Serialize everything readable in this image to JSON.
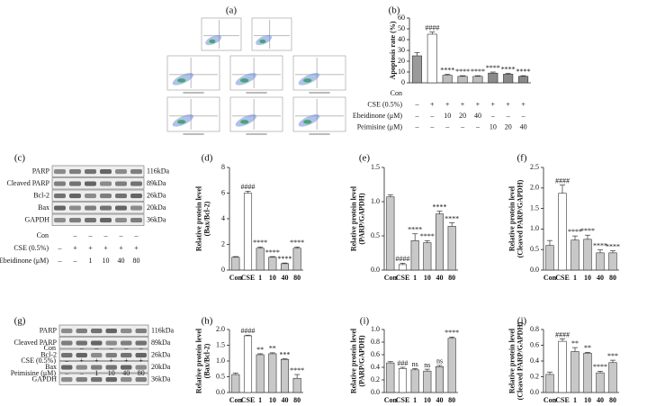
{
  "panel_a": "(a)",
  "chart_data": [
    {
      "type": "bar",
      "panel": "(b)",
      "ylabel": [
        "Apoptosis rate (%)"
      ],
      "values": [
        25,
        45,
        7,
        6,
        6,
        9,
        8,
        6
      ],
      "errors": [
        3,
        2,
        0.8,
        0.6,
        0.6,
        1,
        0.8,
        0.6
      ],
      "annotations": [
        null,
        "####",
        "****",
        "****",
        "****",
        "****",
        "****",
        "****"
      ],
      "colors": [
        "#9a9a9a",
        "#ffffff",
        "#bdbdbd",
        "#bdbdbd",
        "#bdbdbd",
        "#8a8a8a",
        "#8a8a8a",
        "#8a8a8a"
      ],
      "ylim": [
        0,
        60
      ],
      "yticks": [
        0,
        10,
        20,
        30,
        40,
        50,
        60
      ],
      "conditions": [
        {
          "label": "Con"
        },
        {
          "label": "CSE (0.5%)",
          "cells": [
            "–",
            "+",
            "+",
            "+",
            "+",
            "+",
            "+",
            "+"
          ]
        },
        {
          "label": "Ebeidinone (μM)",
          "cells": [
            "–",
            "–",
            "10",
            "20",
            "40",
            "–",
            "–",
            "–"
          ]
        },
        {
          "label": "Peimisine (μM)",
          "cells": [
            "–",
            "–",
            "–",
            "–",
            "–",
            "10",
            "20",
            "40"
          ]
        }
      ]
    },
    {
      "type": "bar",
      "panel": "(d)",
      "ylabel": [
        "Relative protein level",
        "(Bax/Bcl-2)"
      ],
      "categories": [
        "Con",
        "CSE",
        "1",
        "10",
        "40",
        "80"
      ],
      "values": [
        1.0,
        6.0,
        1.7,
        1.0,
        0.5,
        1.7
      ],
      "errors": [
        0.05,
        0.15,
        0.1,
        0.05,
        0.05,
        0.1
      ],
      "annotations": [
        null,
        "####",
        "****",
        "****",
        "****",
        "****"
      ],
      "colors": [
        "#c8c8c8",
        "#ffffff",
        "#c8c8c8",
        "#c8c8c8",
        "#c8c8c8",
        "#c8c8c8"
      ],
      "ylim": [
        0,
        8
      ],
      "yticks": [
        0,
        2,
        4,
        6,
        8
      ]
    },
    {
      "type": "bar",
      "panel": "(e)",
      "ylabel": [
        "Relative protein level",
        "(PARP/GAPDH)"
      ],
      "categories": [
        "Con",
        "CSE",
        "1",
        "10",
        "40",
        "80"
      ],
      "values": [
        1.07,
        0.08,
        0.43,
        0.4,
        0.82,
        0.64
      ],
      "errors": [
        0.03,
        0.02,
        0.1,
        0.03,
        0.04,
        0.05
      ],
      "annotations": [
        null,
        "####",
        "****",
        "****",
        "****",
        "****"
      ],
      "colors": [
        "#c8c8c8",
        "#ffffff",
        "#c8c8c8",
        "#c8c8c8",
        "#c8c8c8",
        "#c8c8c8"
      ],
      "ylim": [
        0,
        1.5
      ],
      "yticks": [
        {
          "value": 0,
          "label": "0.0"
        },
        {
          "value": 0.5,
          "label": "0.5"
        },
        {
          "value": 1,
          "label": "1.0"
        },
        {
          "value": 1.5,
          "label": "1.5"
        }
      ]
    },
    {
      "type": "bar",
      "panel": "(f)",
      "ylabel": [
        "Relative protein level",
        "(Cleaved PARP/GAPDH)"
      ],
      "categories": [
        "Con",
        "CSE",
        "1",
        "10",
        "40",
        "80"
      ],
      "values": [
        0.6,
        1.87,
        0.73,
        0.75,
        0.42,
        0.42
      ],
      "errors": [
        0.12,
        0.2,
        0.1,
        0.1,
        0.07,
        0.05
      ],
      "annotations": [
        null,
        "####",
        "****",
        "****",
        "****",
        "****"
      ],
      "colors": [
        "#c8c8c8",
        "#ffffff",
        "#c8c8c8",
        "#c8c8c8",
        "#c8c8c8",
        "#c8c8c8"
      ],
      "ylim": [
        0,
        2.5
      ],
      "yticks": [
        {
          "value": 0,
          "label": "0.0"
        },
        {
          "value": 0.5,
          "label": "0.5"
        },
        {
          "value": 1,
          "label": "1.0"
        },
        {
          "value": 1.5,
          "label": "1.5"
        },
        {
          "value": 2,
          "label": "2.0"
        },
        {
          "value": 2.5,
          "label": "2.5"
        }
      ]
    },
    {
      "type": "bar",
      "panel": "(h)",
      "ylabel": [
        "Relative protein level",
        "(Bax/Bcl-2)"
      ],
      "categories": [
        "Con",
        "CSE",
        "1",
        "10",
        "40",
        "80"
      ],
      "values": [
        0.57,
        1.8,
        1.2,
        1.23,
        1.05,
        0.45
      ],
      "errors": [
        0.05,
        0.02,
        0.03,
        0.03,
        0.02,
        0.12
      ],
      "annotations": [
        null,
        "####",
        "**",
        "**",
        "***",
        "****"
      ],
      "colors": [
        "#c8c8c8",
        "#ffffff",
        "#c8c8c8",
        "#c8c8c8",
        "#c8c8c8",
        "#c8c8c8"
      ],
      "ylim": [
        0,
        2
      ],
      "yticks": [
        {
          "value": 0,
          "label": "0.0"
        },
        {
          "value": 0.5,
          "label": "0.5"
        },
        {
          "value": 1,
          "label": "1.0"
        },
        {
          "value": 1.5,
          "label": "1.5"
        },
        {
          "value": 2,
          "label": "2.0"
        }
      ]
    },
    {
      "type": "bar",
      "panel": "(i)",
      "ylabel": [
        "Relative protein level",
        "(PARP/GAPDH)"
      ],
      "categories": [
        "Con",
        "CSE",
        "1",
        "10",
        "40",
        "80"
      ],
      "values": [
        0.47,
        0.38,
        0.36,
        0.34,
        0.41,
        0.86
      ],
      "errors": [
        0.02,
        0.02,
        0.02,
        0.03,
        0.02,
        0.02
      ],
      "annotations": [
        null,
        "###",
        "ns",
        "ns",
        "ns",
        "****"
      ],
      "colors": [
        "#c8c8c8",
        "#ffffff",
        "#c8c8c8",
        "#c8c8c8",
        "#c8c8c8",
        "#c8c8c8"
      ],
      "ylim": [
        0,
        1
      ],
      "yticks": [
        {
          "value": 0,
          "label": "0.0"
        },
        {
          "value": 0.2,
          "label": "0.2"
        },
        {
          "value": 0.4,
          "label": "0.4"
        },
        {
          "value": 0.6,
          "label": "0.6"
        },
        {
          "value": 0.8,
          "label": "0.8"
        },
        {
          "value": 1,
          "label": "1.0"
        }
      ]
    },
    {
      "type": "bar",
      "panel": "(j)",
      "ylabel": [
        "Relative protein level",
        "(Cleaved PARP/GAPDH)"
      ],
      "categories": [
        "Con",
        "CSE",
        "1",
        "10",
        "40",
        "80"
      ],
      "values": [
        0.23,
        0.65,
        0.52,
        0.5,
        0.25,
        0.38
      ],
      "errors": [
        0.03,
        0.03,
        0.05,
        0.01,
        0.02,
        0.03
      ],
      "annotations": [
        null,
        "####",
        "**",
        "**",
        "****",
        "***"
      ],
      "colors": [
        "#c8c8c8",
        "#ffffff",
        "#c8c8c8",
        "#c8c8c8",
        "#c8c8c8",
        "#c8c8c8"
      ],
      "ylim": [
        0,
        0.8
      ],
      "yticks": [
        {
          "value": 0,
          "label": "0.0"
        },
        {
          "value": 0.2,
          "label": "0.2"
        },
        {
          "value": 0.4,
          "label": "0.4"
        },
        {
          "value": 0.6,
          "label": "0.6"
        },
        {
          "value": 0.8,
          "label": "0.8"
        }
      ]
    }
  ],
  "blots": [
    {
      "panel": "(c)",
      "rows": [
        {
          "label": "PARP",
          "size": "116kDa"
        },
        {
          "label": "Cleaved PARP",
          "size": "89kDa"
        },
        {
          "label": "Bcl-2",
          "size": "26kDa"
        },
        {
          "label": "Bax",
          "size": "20kDa"
        },
        {
          "label": "GAPDH",
          "size": "36kDa"
        }
      ],
      "conditions": [
        {
          "label": "Con",
          "cells": [
            null,
            "–",
            "–",
            "–",
            "–",
            "–"
          ]
        },
        {
          "label": "CSE (0.5%)",
          "cells": [
            "–",
            "+",
            "+",
            "+",
            "+",
            "+"
          ]
        },
        {
          "label": "Ebeidinone (μM)",
          "cells": [
            "–",
            "–",
            "1",
            "10",
            "40",
            "80"
          ]
        }
      ]
    },
    {
      "panel": "(g)",
      "rows": [
        {
          "label": "PARP",
          "size": "116kDa"
        },
        {
          "label": "Cleaved PARP",
          "size": "89kDa"
        },
        {
          "label": "Bcl-2",
          "size": "26kDa"
        },
        {
          "label": "Bax",
          "size": "20kDa"
        },
        {
          "label": "GAPDH",
          "size": "36kDa"
        }
      ],
      "conditions": [
        {
          "label": "Con",
          "cells": [
            null,
            "–",
            "–",
            "–",
            "–",
            "–"
          ]
        },
        {
          "label": "CSE (0.5%)",
          "cells": [
            "–",
            "+",
            "+",
            "+",
            "+",
            "+"
          ]
        },
        {
          "label": "Peimisine (μM)",
          "cells": [
            "–",
            "–",
            "1",
            "10",
            "40",
            "80"
          ]
        }
      ]
    }
  ]
}
